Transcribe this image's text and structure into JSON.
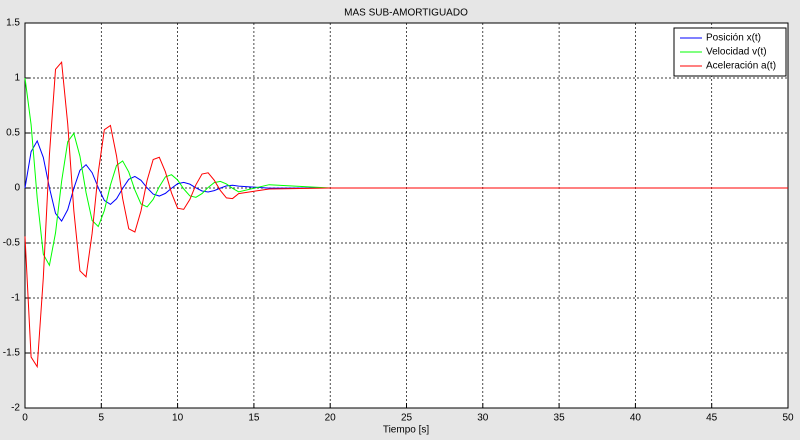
{
  "chart_data": {
    "type": "line",
    "title": "MAS SUB-AMORTIGUADO",
    "x_label": "Tiempo [s]",
    "x": [
      0,
      0.4,
      0.8,
      1.2,
      1.6,
      2.0,
      2.4,
      2.8,
      3.2,
      3.6,
      4.0,
      4.4,
      4.8,
      5.2,
      5.6,
      6.0,
      6.4,
      6.8,
      7.2,
      7.6,
      8.0,
      8.4,
      8.8,
      9.2,
      9.6,
      10.0,
      10.4,
      10.8,
      11.2,
      11.6,
      12.0,
      12.4,
      12.8,
      13.2,
      13.6,
      14.0,
      16,
      20,
      30,
      40,
      50
    ],
    "series": [
      {
        "name": "Posición x(t)",
        "color": "#0000ff",
        "values": [
          0,
          0.33,
          0.428,
          0.278,
          0.002,
          -0.231,
          -0.301,
          -0.197,
          -0.003,
          0.161,
          0.212,
          0.139,
          0.003,
          -0.113,
          -0.149,
          -0.098,
          -0.003,
          0.079,
          0.105,
          0.07,
          0.002,
          -0.055,
          -0.073,
          -0.049,
          -0.002,
          0.039,
          0.051,
          0.035,
          0.002,
          -0.027,
          -0.036,
          -0.024,
          -0.001,
          0.019,
          0.025,
          0.017,
          -0.001,
          0,
          0,
          0,
          0
        ]
      },
      {
        "name": "Velocidad v(t)",
        "color": "#00ff00",
        "values": [
          1,
          0.576,
          -0.091,
          -0.602,
          -0.703,
          -0.408,
          0.061,
          0.421,
          0.496,
          0.289,
          -0.041,
          -0.295,
          -0.35,
          -0.205,
          0.027,
          0.206,
          0.246,
          0.145,
          -0.018,
          -0.145,
          -0.172,
          -0.103,
          0.012,
          0.101,
          0.121,
          0.073,
          -0.008,
          -0.071,
          -0.085,
          -0.051,
          0.005,
          0.049,
          0.06,
          0.037,
          -0.003,
          -0.035,
          0.03,
          0,
          0,
          0,
          0
        ]
      },
      {
        "name": "Aceleración a(t)",
        "color": "#ff0000",
        "values": [
          -0.44,
          -1.537,
          -1.625,
          -0.816,
          0.301,
          1.079,
          1.144,
          0.581,
          -0.206,
          -0.753,
          -0.807,
          -0.411,
          0.142,
          0.53,
          0.568,
          0.29,
          -0.096,
          -0.371,
          -0.4,
          -0.208,
          0.068,
          0.259,
          0.279,
          0.147,
          -0.045,
          -0.184,
          -0.194,
          -0.105,
          0.029,
          0.127,
          0.138,
          0.071,
          -0.022,
          -0.09,
          -0.096,
          -0.051,
          -0.009,
          0,
          0,
          0,
          0
        ]
      }
    ],
    "xlim": [
      0,
      50
    ],
    "xticks": [
      0,
      5,
      10,
      15,
      20,
      25,
      30,
      35,
      40,
      45,
      50
    ],
    "ylim": [
      -2,
      1.5
    ],
    "yticks": [
      -2,
      -1.5,
      -1,
      -0.5,
      0,
      0.5,
      1,
      1.5
    ],
    "grid": true,
    "legend": "upper right"
  }
}
